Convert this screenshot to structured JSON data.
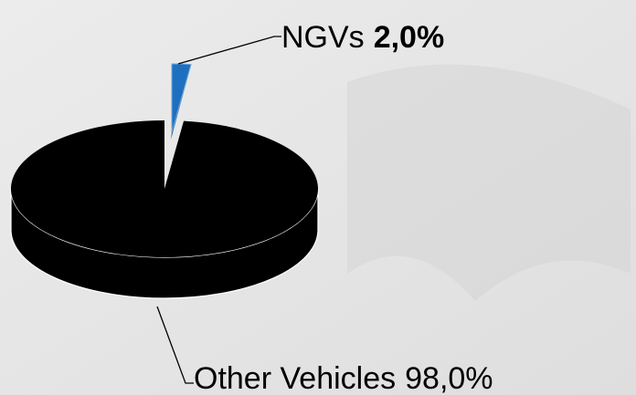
{
  "chart_data": {
    "type": "pie",
    "categories": [
      "NGVs",
      "Other Vehicles"
    ],
    "values": [
      2.0,
      98.0
    ],
    "value_labels": [
      "2,0%",
      "98,0%"
    ],
    "colors": [
      "#1f6fc0",
      "#000000"
    ]
  }
}
